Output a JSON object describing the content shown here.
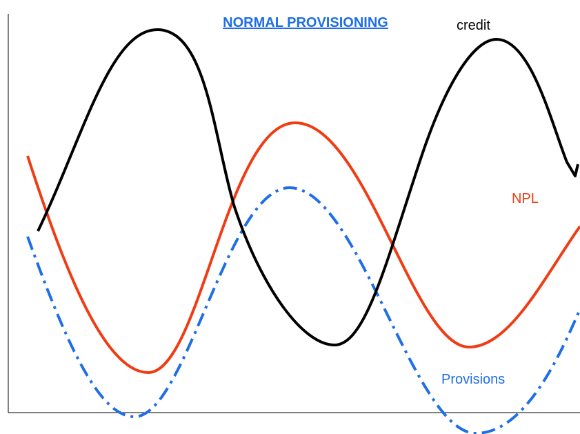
{
  "title": "NORMAL PROVISIONING",
  "labels": {
    "credit": "credit",
    "npl": "NPL",
    "provisions": "Provisions"
  }
}
